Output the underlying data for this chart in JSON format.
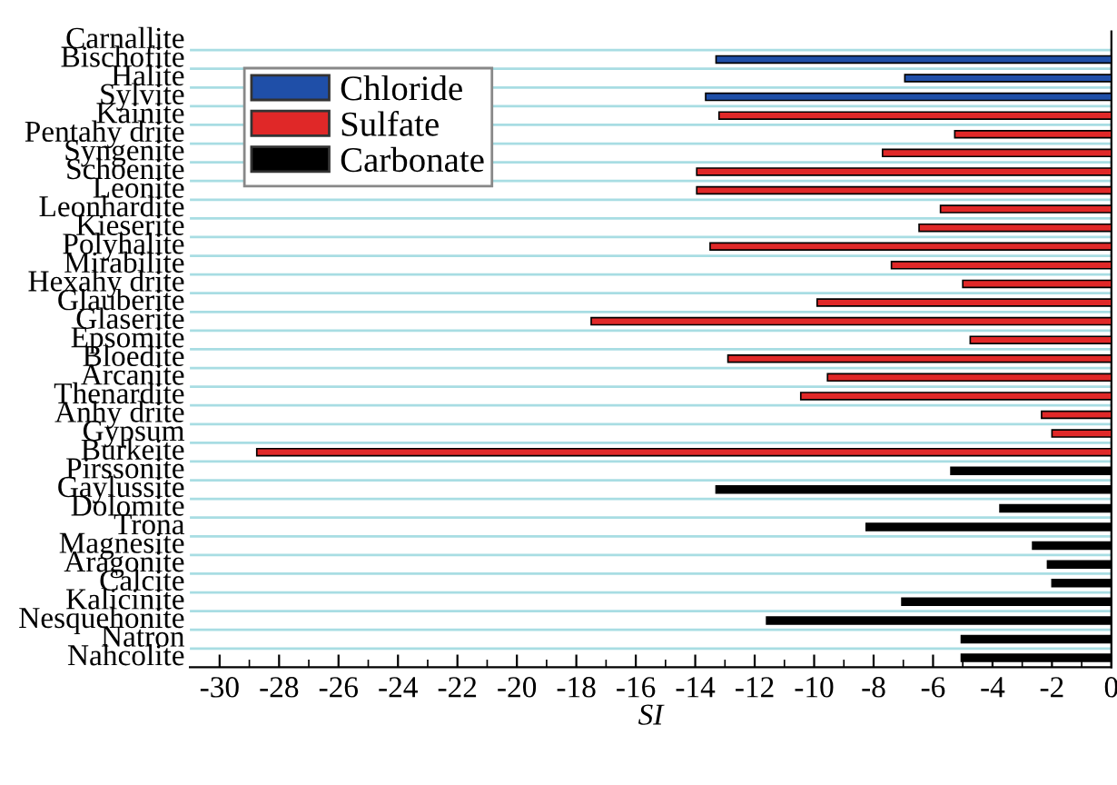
{
  "chart_data": {
    "type": "bar",
    "orientation": "horizontal",
    "xlabel": "SI",
    "categories": [
      "Carnallite",
      "Bischofite",
      "Halite",
      "Sylvite",
      "Kainite",
      "Pentahy drite",
      "Syngenite",
      "Schoenite",
      "Leonite",
      "Leonhardite",
      "Kieserite",
      "Polyhalite",
      "Mirabilite",
      "Hexahy drite",
      "Glauberite",
      "Glaserite",
      "Epsomite",
      "Bloedite",
      "Arcanite",
      "Thenardite",
      "Anhy drite",
      "Gypsum",
      "Burkeite",
      "Pirssonite",
      "Gaylussite",
      "Dolomite",
      "Trona",
      "Magnesite",
      "Aragonite",
      "Calcite",
      "Kalicinite",
      "Nesquehonite",
      "Natron",
      "Nahcolite"
    ],
    "series": [
      {
        "name": "Chloride",
        "color": "#1f4fa8",
        "values": [
          null,
          -13.3,
          -6.95,
          -13.65,
          null,
          null,
          null,
          null,
          null,
          null,
          null,
          null,
          null,
          null,
          null,
          null,
          null,
          null,
          null,
          null,
          null,
          null,
          null,
          null,
          null,
          null,
          null,
          null,
          null,
          null,
          null,
          null,
          null,
          null
        ]
      },
      {
        "name": "Sulfate",
        "color": "#e02828",
        "values": [
          null,
          null,
          null,
          null,
          -13.2,
          -5.27,
          -7.7,
          -13.95,
          -13.95,
          -5.75,
          -6.47,
          -13.5,
          -7.4,
          -5.0,
          -9.9,
          -17.5,
          -4.75,
          -12.9,
          -9.55,
          -10.45,
          -2.35,
          -2.0,
          -28.75,
          null,
          null,
          null,
          null,
          null,
          null,
          null,
          null,
          null,
          null,
          null
        ]
      },
      {
        "name": "Carbonate",
        "color": "#000000",
        "values": [
          null,
          null,
          null,
          null,
          null,
          null,
          null,
          null,
          null,
          null,
          null,
          null,
          null,
          null,
          null,
          null,
          null,
          null,
          null,
          null,
          null,
          null,
          null,
          -5.4,
          -13.3,
          -3.75,
          -8.25,
          -2.65,
          -2.15,
          -2.0,
          -7.05,
          -11.6,
          -5.05,
          -5.05
        ]
      }
    ],
    "xlim": [
      -31,
      0
    ],
    "xticks": [
      -30,
      -28,
      -26,
      -24,
      -22,
      -20,
      -18,
      -16,
      -14,
      -12,
      -10,
      -8,
      -6,
      -4,
      -2,
      0
    ],
    "grid": "y",
    "legend": "top left"
  }
}
